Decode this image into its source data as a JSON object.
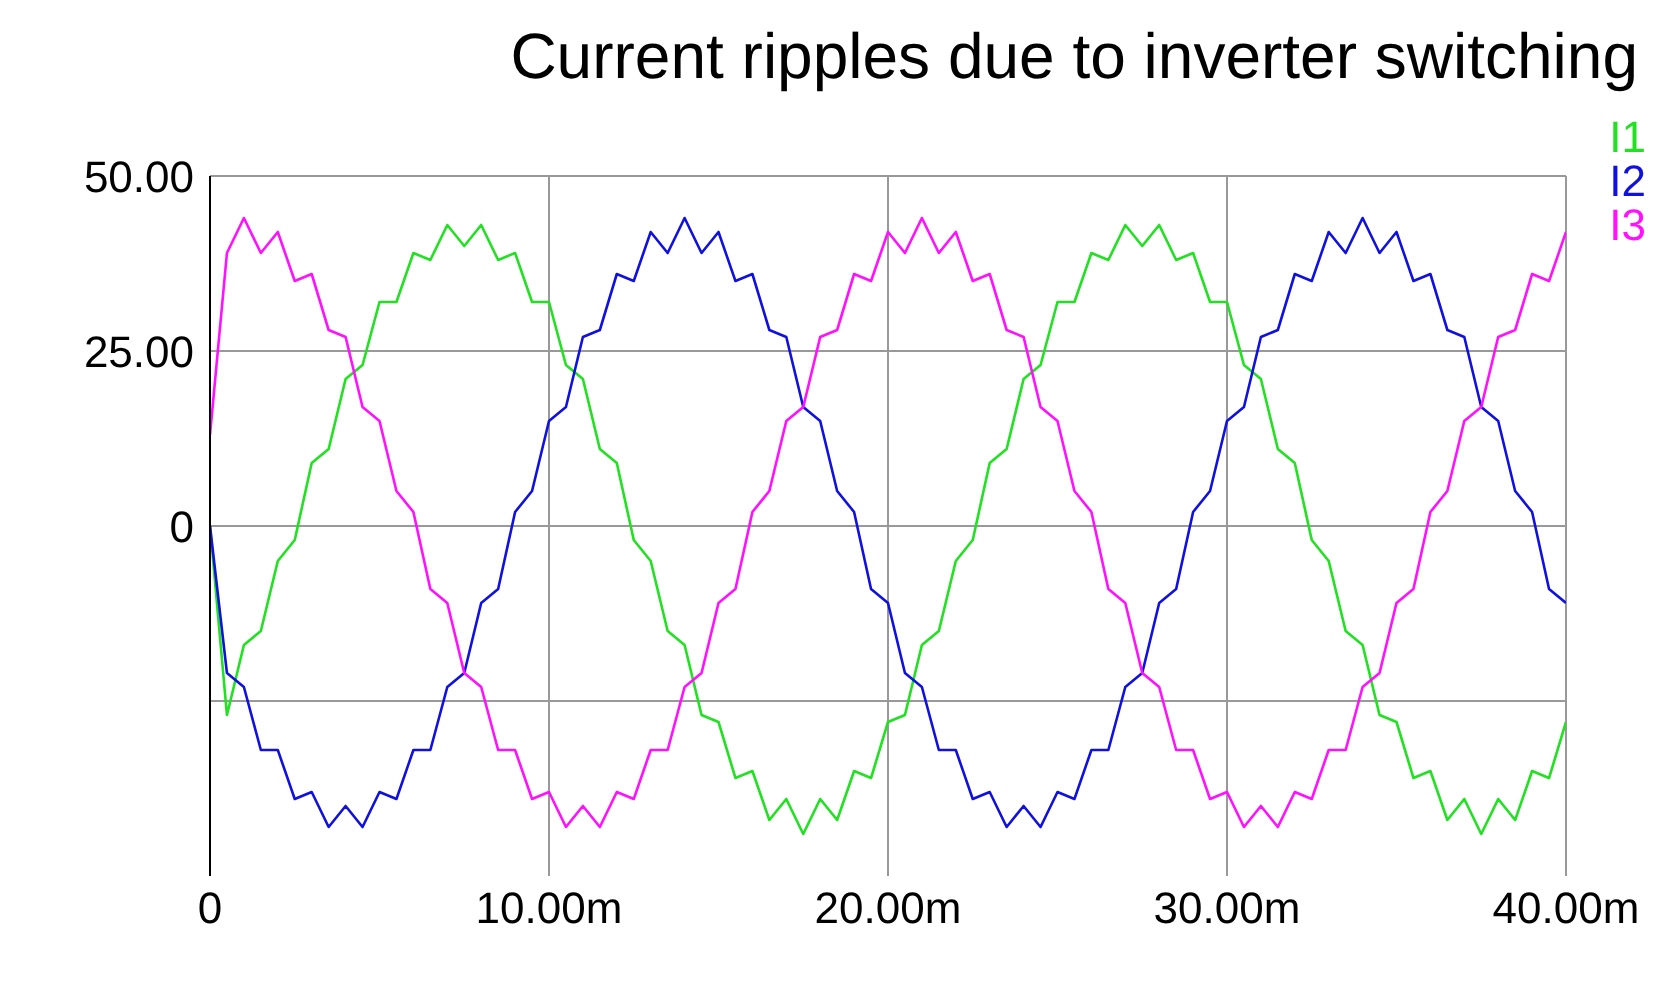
{
  "chart_data": {
    "type": "line",
    "title": "Current ripples due to inverter switching",
    "x": [
      0,
      0.5,
      1,
      1.5,
      2,
      2.5,
      3,
      3.5,
      4,
      4.5,
      5,
      5.5,
      6,
      6.5,
      7,
      7.5,
      8,
      8.5,
      9,
      9.5,
      10,
      10.5,
      11,
      11.5,
      12,
      12.5,
      13,
      13.5,
      14,
      14.5,
      15,
      15.5,
      16,
      16.5,
      17,
      17.5,
      18,
      18.5,
      19,
      19.5,
      20,
      20.5,
      21,
      21.5,
      22,
      22.5,
      23,
      23.5,
      24,
      24.5,
      25,
      25.5,
      26,
      26.5,
      27,
      27.5,
      28,
      28.5,
      29,
      29.5,
      30,
      30.5,
      31,
      31.5,
      32,
      32.5,
      33,
      33.5,
      34,
      34.5,
      35,
      35.5,
      36,
      36.5,
      37,
      37.5,
      38,
      38.5,
      39,
      39.5,
      40
    ],
    "series": [
      {
        "name": "I1",
        "color": "#22e022",
        "values": [
          0,
          -27,
          -17,
          -15,
          -5,
          -2,
          9,
          11,
          21,
          23,
          32,
          32,
          39,
          38,
          43,
          40,
          43,
          38,
          39,
          32,
          32,
          23,
          21,
          11,
          9,
          -2,
          -5,
          -15,
          -17,
          -27,
          -28,
          -36,
          -35,
          -42,
          -39,
          -44,
          -39,
          -42,
          -35,
          -36,
          -28,
          -27,
          -17,
          -15,
          -5,
          -2,
          9,
          11,
          21,
          23,
          32,
          32,
          39,
          38,
          43,
          40,
          43,
          38,
          39,
          32,
          32,
          23,
          21,
          11,
          9,
          -2,
          -5,
          -15,
          -17,
          -27,
          -28,
          -36,
          -35,
          -42,
          -39,
          -44,
          -39,
          -42,
          -35,
          -36,
          -28
        ]
      },
      {
        "name": "I2",
        "color": "#1010e0",
        "values": [
          0,
          -21,
          -23,
          -32,
          -32,
          -39,
          -38,
          -43,
          -40,
          -43,
          -38,
          -39,
          -32,
          -32,
          -23,
          -21,
          -11,
          -9,
          2,
          5,
          15,
          17,
          27,
          28,
          36,
          35,
          42,
          39,
          44,
          39,
          42,
          35,
          36,
          28,
          27,
          17,
          15,
          5,
          2,
          -9,
          -11,
          -21,
          -23,
          -32,
          -32,
          -39,
          -38,
          -43,
          -40,
          -43,
          -38,
          -39,
          -32,
          -32,
          -23,
          -21,
          -11,
          -9,
          2,
          5,
          15,
          17,
          27,
          28,
          36,
          35,
          42,
          39,
          44,
          39,
          42,
          35,
          36,
          28,
          27,
          17,
          15,
          5,
          2,
          -9,
          -11
        ]
      },
      {
        "name": "I3",
        "color": "#ff10ff",
        "values": [
          13,
          39,
          44,
          39,
          42,
          35,
          36,
          28,
          27,
          17,
          15,
          5,
          2,
          -9,
          -11,
          -21,
          -23,
          -32,
          -32,
          -39,
          -38,
          -43,
          -40,
          -43,
          -38,
          -39,
          -32,
          -32,
          -23,
          -21,
          -11,
          -9,
          2,
          5,
          15,
          17,
          27,
          28,
          36,
          35,
          42,
          39,
          44,
          39,
          42,
          35,
          36,
          28,
          27,
          17,
          15,
          5,
          2,
          -9,
          -11,
          -21,
          -23,
          -32,
          -32,
          -39,
          -38,
          -43,
          -40,
          -43,
          -38,
          -39,
          -32,
          -32,
          -23,
          -21,
          -11,
          -9,
          2,
          5,
          15,
          17,
          27,
          28,
          36,
          35,
          42
        ]
      }
    ],
    "xlim": [
      0,
      40
    ],
    "xticks": [
      0,
      {
        "value": 10,
        "label": "10.00m"
      },
      {
        "value": 20,
        "label": "20.00m"
      },
      {
        "value": 30,
        "label": "30.00m"
      },
      {
        "value": 40,
        "label": "40.00m"
      }
    ],
    "ylim": [
      -50,
      50
    ],
    "yticks": [
      {
        "value": 50,
        "label": "50.00"
      },
      {
        "value": 25,
        "label": "25.00"
      },
      0,
      {
        "value": -25,
        "label": null
      }
    ],
    "grid": true,
    "legend": "top right",
    "marker": "none",
    "line_style": "solid"
  }
}
